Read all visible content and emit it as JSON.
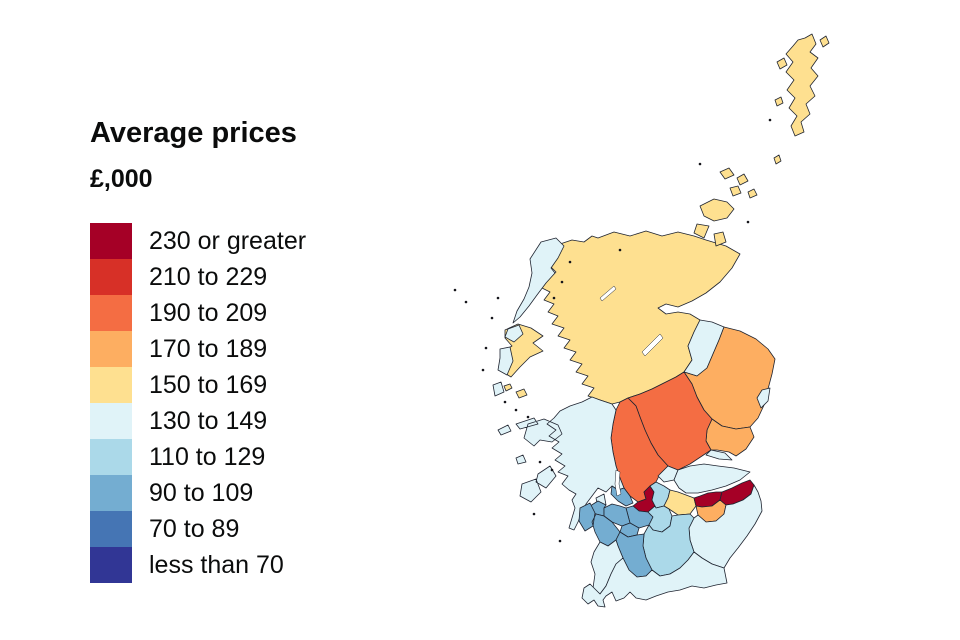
{
  "chart_data": {
    "type": "choropleth",
    "title": "Average prices",
    "units_label": "£,000",
    "geography": "Scotland, local authority areas",
    "legend_position": "upper-left",
    "sea_color": "#ffffff",
    "border_color": "#1f2430",
    "bands": [
      {
        "label": "230 or greater",
        "color": "#a50026"
      },
      {
        "label": "210 to 229",
        "color": "#d73027"
      },
      {
        "label": "190 to 209",
        "color": "#f46d43"
      },
      {
        "label": "170 to 189",
        "color": "#fdae61"
      },
      {
        "label": "150 to 169",
        "color": "#fee090"
      },
      {
        "label": "130 to 149",
        "color": "#e0f3f8"
      },
      {
        "label": "110 to 129",
        "color": "#abd9e9"
      },
      {
        "label": "90 to 109",
        "color": "#74add1"
      },
      {
        "label": "70 to 89",
        "color": "#4575b4"
      },
      {
        "label": "less than 70",
        "color": "#313695"
      }
    ],
    "regions": [
      {
        "id": "highland",
        "name": "Highland",
        "band": "150 to 169"
      },
      {
        "id": "moray",
        "name": "Moray",
        "band": "130 to 149"
      },
      {
        "id": "aberdeenshire",
        "name": "Aberdeenshire",
        "band": "170 to 189"
      },
      {
        "id": "aberdeen-city",
        "name": "Aberdeen City",
        "band": "130 to 149"
      },
      {
        "id": "angus",
        "name": "Angus",
        "band": "170 to 189"
      },
      {
        "id": "dundee-city",
        "name": "Dundee City",
        "band": "130 to 149"
      },
      {
        "id": "perth-and-kinross",
        "name": "Perth and Kinross",
        "band": "190 to 209"
      },
      {
        "id": "stirling",
        "name": "Stirling",
        "band": "190 to 209"
      },
      {
        "id": "clackmannanshire",
        "name": "Clackmannanshire",
        "band": "130 to 149"
      },
      {
        "id": "fife",
        "name": "Fife",
        "band": "130 to 149"
      },
      {
        "id": "argyll-and-bute",
        "name": "Argyll and Bute",
        "band": "130 to 149"
      },
      {
        "id": "west-dunbartonshire",
        "name": "West Dunbartonshire",
        "band": "90 to 109"
      },
      {
        "id": "east-dunbartonshire",
        "name": "East Dunbartonshire",
        "band": "230 or greater"
      },
      {
        "id": "falkirk",
        "name": "Falkirk",
        "band": "110 to 129"
      },
      {
        "id": "west-lothian",
        "name": "West Lothian",
        "band": "150 to 169"
      },
      {
        "id": "city-of-edinburgh",
        "name": "City of Edinburgh",
        "band": "230 or greater"
      },
      {
        "id": "midlothian",
        "name": "Midlothian",
        "band": "170 to 189"
      },
      {
        "id": "east-lothian",
        "name": "East Lothian",
        "band": "230 or greater"
      },
      {
        "id": "scottish-borders",
        "name": "Scottish Borders",
        "band": "130 to 149"
      },
      {
        "id": "glasgow-city",
        "name": "Glasgow City",
        "band": "90 to 109"
      },
      {
        "id": "north-lanarkshire",
        "name": "North Lanarkshire",
        "band": "110 to 129"
      },
      {
        "id": "south-lanarkshire",
        "name": "South Lanarkshire",
        "band": "110 to 129"
      },
      {
        "id": "inverclyde",
        "name": "Inverclyde",
        "band": "90 to 109"
      },
      {
        "id": "renfrewshire",
        "name": "Renfrewshire",
        "band": "90 to 109"
      },
      {
        "id": "east-renfrewshire",
        "name": "East Renfrewshire",
        "band": "90 to 109"
      },
      {
        "id": "north-ayrshire",
        "name": "North Ayrshire",
        "band": "90 to 109"
      },
      {
        "id": "east-ayrshire",
        "name": "East Ayrshire",
        "band": "90 to 109"
      },
      {
        "id": "south-ayrshire",
        "name": "South Ayrshire",
        "band": "130 to 149"
      },
      {
        "id": "dumfries-and-galloway",
        "name": "Dumfries and Galloway",
        "band": "130 to 149"
      },
      {
        "id": "na-h-eileanan-siar",
        "name": "Na h-Eileanan Siar",
        "band": "130 to 149"
      },
      {
        "id": "orkney",
        "name": "Orkney Islands",
        "band": "150 to 169"
      },
      {
        "id": "shetland",
        "name": "Shetland Islands",
        "band": "150 to 169"
      }
    ]
  }
}
